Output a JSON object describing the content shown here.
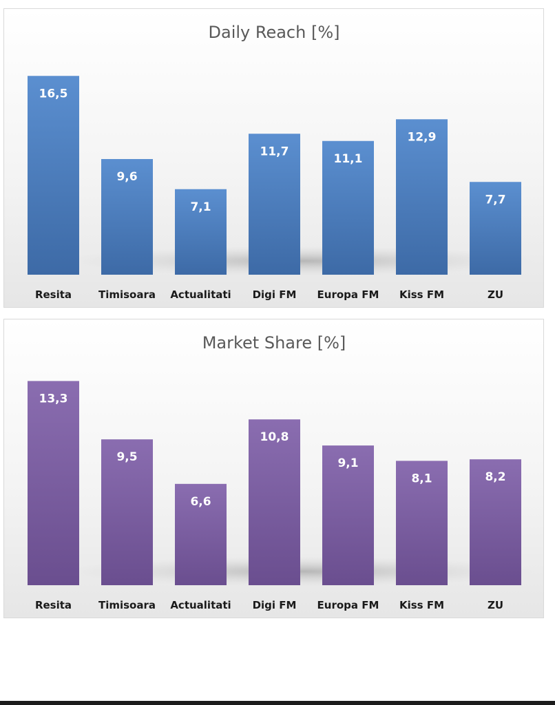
{
  "chart_data": [
    {
      "type": "bar",
      "title": "Daily Reach [%]",
      "categories": [
        "Resita",
        "Timisoara",
        "Actualitati",
        "Digi FM",
        "Europa FM",
        "Kiss FM",
        "ZU"
      ],
      "values": [
        16.5,
        9.6,
        7.1,
        11.7,
        11.1,
        12.9,
        7.7
      ],
      "value_labels": [
        "16,5",
        "9,6",
        "7,1",
        "11,7",
        "11,1",
        "12,9",
        "7,7"
      ],
      "xlabel": "",
      "ylabel": "",
      "ylim": [
        0,
        18
      ],
      "grid": false,
      "legend": "none",
      "color": "#4a7ebb"
    },
    {
      "type": "bar",
      "title": "Market Share [%]",
      "categories": [
        "Resita",
        "Timisoara",
        "Actualitati",
        "Digi FM",
        "Europa FM",
        "Kiss FM",
        "ZU"
      ],
      "values": [
        13.3,
        9.5,
        6.6,
        10.8,
        9.1,
        8.1,
        8.2
      ],
      "value_labels": [
        "13,3",
        "9,5",
        "6,6",
        "10,8",
        "9,1",
        "8,1",
        "8,2"
      ],
      "xlabel": "",
      "ylabel": "",
      "ylim": [
        0,
        14.5
      ],
      "grid": false,
      "legend": "none",
      "color": "#7b5fa0"
    }
  ]
}
